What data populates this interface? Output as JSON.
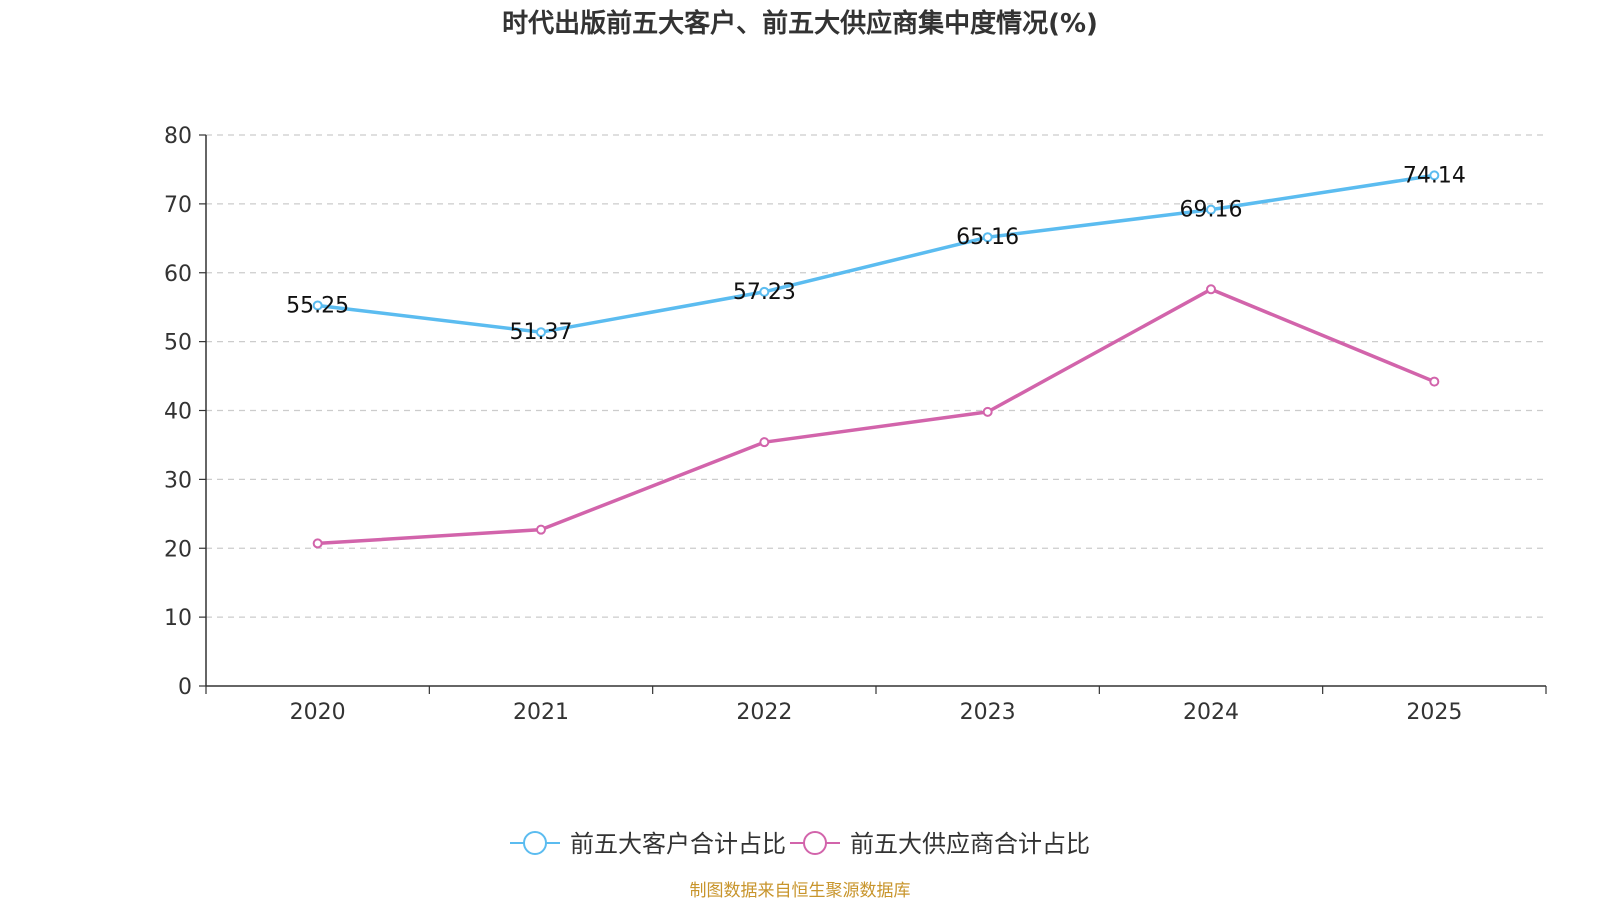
{
  "chart_data": {
    "type": "line",
    "title": "时代出版前五大客户、前五大供应商集中度情况(%)",
    "categories": [
      "2020",
      "2021",
      "2022",
      "2023",
      "2024",
      "2025"
    ],
    "ylim": [
      0,
      80
    ],
    "yticks": [
      0,
      10,
      20,
      30,
      40,
      50,
      60,
      70,
      80
    ],
    "grid": true,
    "legend_position": "bottom",
    "series": [
      {
        "name": "前五大客户合计占比",
        "color": "#5bbcf0",
        "values": [
          55.25,
          51.37,
          57.23,
          65.16,
          69.16,
          74.14
        ],
        "labels": [
          "55.25",
          "51.37",
          "57.23",
          "65.16",
          "69.16",
          "74.14"
        ],
        "show_labels": true
      },
      {
        "name": "前五大供应商合计占比",
        "color": "#d264ab",
        "values": [
          20.7,
          22.7,
          35.4,
          39.8,
          57.6,
          44.2
        ],
        "show_labels": false
      }
    ],
    "source": "制图数据来自恒生聚源数据库"
  }
}
